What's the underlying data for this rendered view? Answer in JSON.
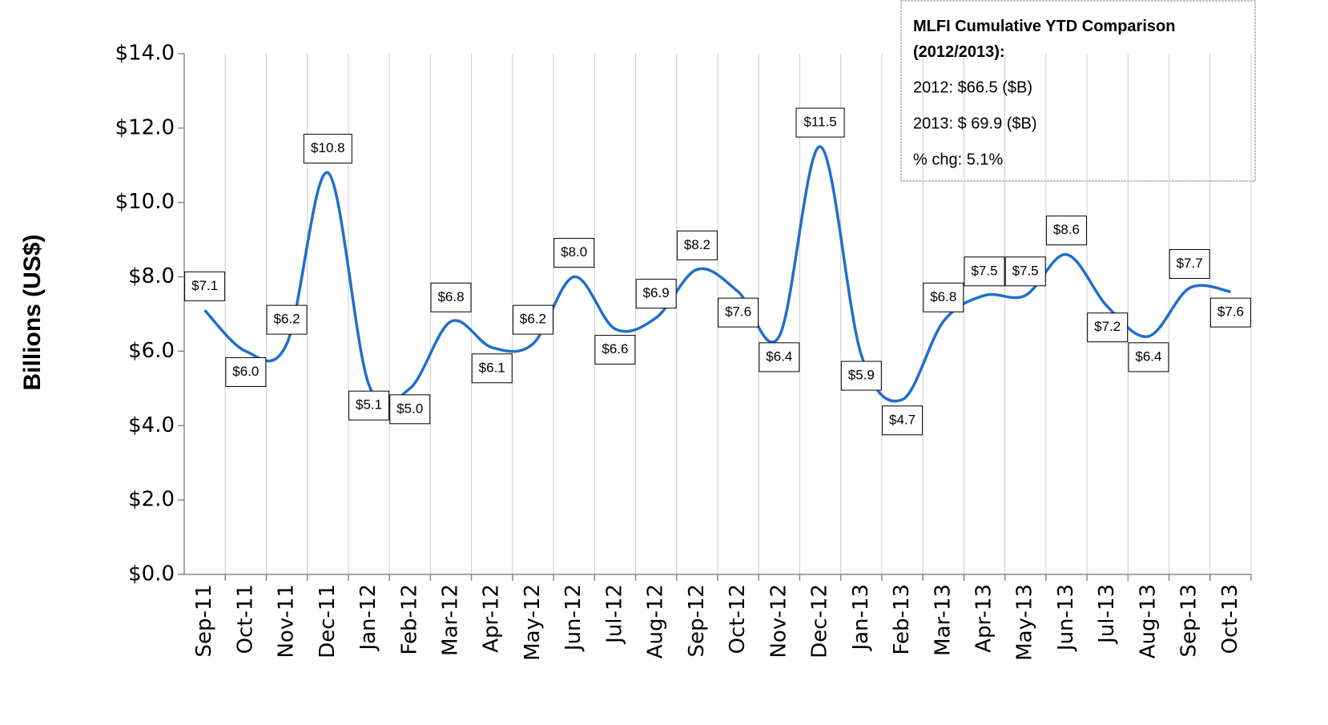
{
  "chart_data": {
    "type": "line",
    "y_axis_label": "Billions (US$)",
    "categories": [
      "Sep-11",
      "Oct-11",
      "Nov-11",
      "Dec-11",
      "Jan-12",
      "Feb-12",
      "Mar-12",
      "Apr-12",
      "May-12",
      "Jun-12",
      "Jul-12",
      "Aug-12",
      "Sep-12",
      "Oct-12",
      "Nov-12",
      "Dec-12",
      "Jan-13",
      "Feb-13",
      "Mar-13",
      "Apr-13",
      "May-13",
      "Jun-13",
      "Jul-13",
      "Aug-13",
      "Sep-13",
      "Oct-13"
    ],
    "series": [
      {
        "name": "MLFI",
        "color": "#1f6fce",
        "values": [
          7.1,
          6.0,
          6.2,
          10.8,
          5.1,
          5.0,
          6.8,
          6.1,
          6.2,
          8.0,
          6.6,
          6.9,
          8.2,
          7.6,
          6.4,
          11.5,
          5.9,
          4.7,
          6.8,
          7.5,
          7.5,
          8.6,
          7.2,
          6.4,
          7.7,
          7.6
        ],
        "value_labels": [
          "$7.1",
          "$6.0",
          "$6.2",
          "$10.8",
          "$5.1",
          "$5.0",
          "$6.8",
          "$6.1",
          "$6.2",
          "$8.0",
          "$6.6",
          "$6.9",
          "$8.2",
          "$7.6",
          "$6.4",
          "$11.5",
          "$5.9",
          "$4.7",
          "$6.8",
          "$7.5",
          "$7.5",
          "$8.6",
          "$7.2",
          "$6.4",
          "$7.7",
          "$7.6"
        ]
      }
    ],
    "ylim": [
      0,
      14
    ],
    "yticks": [
      {
        "value": 0,
        "label": "$0.0"
      },
      {
        "value": 2,
        "label": "$2.0"
      },
      {
        "value": 4,
        "label": "$4.0"
      },
      {
        "value": 6,
        "label": "$6.0"
      },
      {
        "value": 8,
        "label": "$8.0"
      },
      {
        "value": 10,
        "label": "$10.0"
      },
      {
        "value": 12,
        "label": "$12.0"
      },
      {
        "value": 14,
        "label": "$14.0"
      }
    ],
    "grid": true,
    "annotation": {
      "title": "MLFI Cumulative YTD Comparison (2012/2013):",
      "lines": [
        "2012: $66.5 ($B)",
        "2013: $ 69.9  ($B)",
        "% chg: 5.1%"
      ]
    }
  }
}
